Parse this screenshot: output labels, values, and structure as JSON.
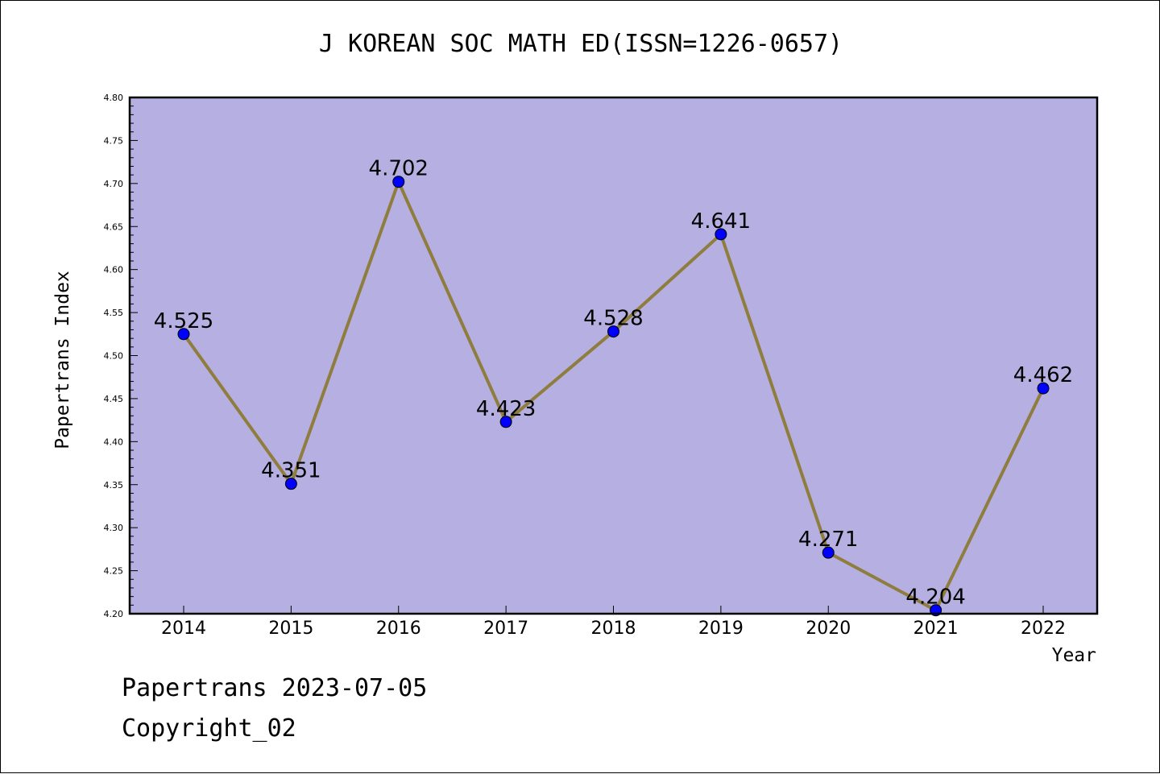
{
  "title": "J KOREAN SOC MATH ED(ISSN=1226-0657)",
  "footer": {
    "line1": "Papertrans 2023-07-05",
    "line2": "Copyright_02"
  },
  "colors": {
    "plot_background": "#b5afe2",
    "line": "#8f7d3d",
    "marker": "#0000ff"
  },
  "chart_data": {
    "type": "line",
    "title": "J KOREAN SOC MATH ED(ISSN=1226-0657)",
    "xlabel": "Year",
    "ylabel": "Papertrans Index",
    "ylim": [
      4.2,
      4.8
    ],
    "yticks": [
      "4.20",
      "4.25",
      "4.30",
      "4.35",
      "4.40",
      "4.45",
      "4.50",
      "4.55",
      "4.60",
      "4.65",
      "4.70",
      "4.75",
      "4.80"
    ],
    "categories": [
      "2014",
      "2015",
      "2016",
      "2017",
      "2018",
      "2019",
      "2020",
      "2021",
      "2022"
    ],
    "values": [
      4.525,
      4.351,
      4.702,
      4.423,
      4.528,
      4.641,
      4.271,
      4.204,
      4.462
    ],
    "data_labels": [
      "4.525",
      "4.351",
      "4.702",
      "4.423",
      "4.528",
      "4.641",
      "4.271",
      "4.204",
      "4.462"
    ],
    "grid": false,
    "legend": "none"
  }
}
